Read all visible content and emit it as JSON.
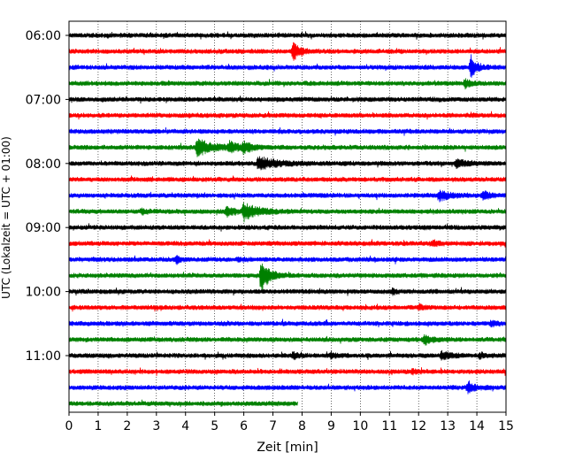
{
  "chart_data": {
    "type": "line",
    "title": "",
    "xlabel": "Zeit  [min]",
    "ylabel": "UTC (Lokalzeit = UTC + 01:00)",
    "xlim": [
      0,
      15
    ],
    "x_ticks": [
      0,
      1,
      2,
      3,
      4,
      5,
      6,
      7,
      8,
      9,
      10,
      11,
      12,
      13,
      14,
      15
    ],
    "grid": "vertical dotted",
    "y_tick_labels": [
      "06:00",
      "07:00",
      "08:00",
      "09:00",
      "10:00",
      "11:00"
    ],
    "row_interval_minutes": 15,
    "start_time": "06:00",
    "colors": [
      "#000000",
      "#ff0000",
      "#0000ff",
      "#008000"
    ],
    "rows": [
      {
        "time": "06:00",
        "color": "#000000",
        "end_min": 15,
        "events": []
      },
      {
        "time": "06:15",
        "color": "#ff0000",
        "end_min": 15,
        "events": [
          {
            "t": 7.7,
            "amp": 1.0,
            "dur": 0.5
          }
        ]
      },
      {
        "time": "06:30",
        "color": "#0000ff",
        "end_min": 15,
        "events": [
          {
            "t": 13.8,
            "amp": 1.4,
            "dur": 0.4
          }
        ]
      },
      {
        "time": "06:45",
        "color": "#008000",
        "end_min": 15,
        "events": [
          {
            "t": 13.6,
            "amp": 0.5,
            "dur": 0.4
          }
        ]
      },
      {
        "time": "07:00",
        "color": "#000000",
        "end_min": 15,
        "events": []
      },
      {
        "time": "07:15",
        "color": "#ff0000",
        "end_min": 15,
        "events": []
      },
      {
        "time": "07:30",
        "color": "#0000ff",
        "end_min": 15,
        "events": []
      },
      {
        "time": "07:45",
        "color": "#008000",
        "end_min": 15,
        "events": [
          {
            "t": 4.4,
            "amp": 1.0,
            "dur": 1.2
          },
          {
            "t": 5.5,
            "amp": 0.6,
            "dur": 0.6
          },
          {
            "t": 6.0,
            "amp": 0.5,
            "dur": 0.6
          }
        ]
      },
      {
        "time": "08:00",
        "color": "#000000",
        "end_min": 15,
        "events": [
          {
            "t": 6.5,
            "amp": 0.7,
            "dur": 1.4
          },
          {
            "t": 13.3,
            "amp": 0.4,
            "dur": 0.8
          }
        ]
      },
      {
        "time": "08:15",
        "color": "#ff0000",
        "end_min": 15,
        "events": []
      },
      {
        "time": "08:30",
        "color": "#0000ff",
        "end_min": 15,
        "events": [
          {
            "t": 12.7,
            "amp": 0.6,
            "dur": 0.8
          },
          {
            "t": 14.2,
            "amp": 0.4,
            "dur": 0.6
          }
        ]
      },
      {
        "time": "08:45",
        "color": "#008000",
        "end_min": 15,
        "events": [
          {
            "t": 6.0,
            "amp": 1.0,
            "dur": 1.0
          },
          {
            "t": 5.4,
            "amp": 0.6,
            "dur": 0.6
          },
          {
            "t": 2.5,
            "amp": 0.3,
            "dur": 0.3
          }
        ]
      },
      {
        "time": "09:00",
        "color": "#000000",
        "end_min": 15,
        "events": []
      },
      {
        "time": "09:15",
        "color": "#ff0000",
        "end_min": 15,
        "events": [
          {
            "t": 12.5,
            "amp": 0.3,
            "dur": 0.3
          }
        ]
      },
      {
        "time": "09:30",
        "color": "#0000ff",
        "end_min": 15,
        "events": [
          {
            "t": 3.7,
            "amp": 0.4,
            "dur": 0.3
          },
          {
            "t": 5.8,
            "amp": 0.2,
            "dur": 0.3
          }
        ]
      },
      {
        "time": "09:45",
        "color": "#008000",
        "end_min": 15,
        "events": [
          {
            "t": 6.6,
            "amp": 2.2,
            "dur": 0.5
          }
        ]
      },
      {
        "time": "10:00",
        "color": "#000000",
        "end_min": 15,
        "events": [
          {
            "t": 11.1,
            "amp": 0.3,
            "dur": 0.3
          }
        ]
      },
      {
        "time": "10:15",
        "color": "#ff0000",
        "end_min": 15,
        "events": [
          {
            "t": 12.0,
            "amp": 0.3,
            "dur": 0.3
          }
        ]
      },
      {
        "time": "10:30",
        "color": "#0000ff",
        "end_min": 15,
        "events": [
          {
            "t": 14.5,
            "amp": 0.3,
            "dur": 0.4
          }
        ]
      },
      {
        "time": "10:45",
        "color": "#008000",
        "end_min": 15,
        "events": [
          {
            "t": 12.2,
            "amp": 0.6,
            "dur": 0.5
          }
        ]
      },
      {
        "time": "11:00",
        "color": "#000000",
        "end_min": 15,
        "events": [
          {
            "t": 7.7,
            "amp": 0.4,
            "dur": 0.3
          },
          {
            "t": 9.0,
            "amp": 0.3,
            "dur": 0.3
          },
          {
            "t": 12.8,
            "amp": 0.5,
            "dur": 0.6
          },
          {
            "t": 14.1,
            "amp": 0.3,
            "dur": 0.3
          }
        ]
      },
      {
        "time": "11:15",
        "color": "#ff0000",
        "end_min": 15,
        "events": [
          {
            "t": 11.8,
            "amp": 0.3,
            "dur": 0.3
          }
        ]
      },
      {
        "time": "11:30",
        "color": "#0000ff",
        "end_min": 15,
        "events": [
          {
            "t": 13.7,
            "amp": 0.8,
            "dur": 0.4
          }
        ]
      },
      {
        "time": "11:45",
        "color": "#008000",
        "end_min": 7.85,
        "events": []
      }
    ]
  }
}
